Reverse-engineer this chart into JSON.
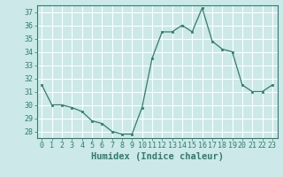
{
  "x": [
    0,
    1,
    2,
    3,
    4,
    5,
    6,
    7,
    8,
    9,
    10,
    11,
    12,
    13,
    14,
    15,
    16,
    17,
    18,
    19,
    20,
    21,
    22,
    23
  ],
  "y": [
    31.5,
    30.0,
    30.0,
    29.8,
    29.5,
    28.8,
    28.6,
    28.0,
    27.8,
    27.8,
    29.8,
    33.5,
    35.5,
    35.5,
    36.0,
    35.5,
    37.3,
    34.8,
    34.2,
    34.0,
    31.5,
    31.0,
    31.0,
    31.5
  ],
  "ylim": [
    27.5,
    37.5
  ],
  "xlim": [
    -0.5,
    23.5
  ],
  "yticks": [
    28,
    29,
    30,
    31,
    32,
    33,
    34,
    35,
    36,
    37
  ],
  "xticks": [
    0,
    1,
    2,
    3,
    4,
    5,
    6,
    7,
    8,
    9,
    10,
    11,
    12,
    13,
    14,
    15,
    16,
    17,
    18,
    19,
    20,
    21,
    22,
    23
  ],
  "xlabel": "Humidex (Indice chaleur)",
  "line_color": "#2e7d6e",
  "marker": "s",
  "marker_size": 2.0,
  "bg_color": "#cce8e8",
  "grid_color": "#ffffff",
  "tick_color": "#2e7d6e",
  "label_color": "#2e7d6e",
  "xlabel_fontsize": 7.5,
  "tick_fontsize": 6.0
}
